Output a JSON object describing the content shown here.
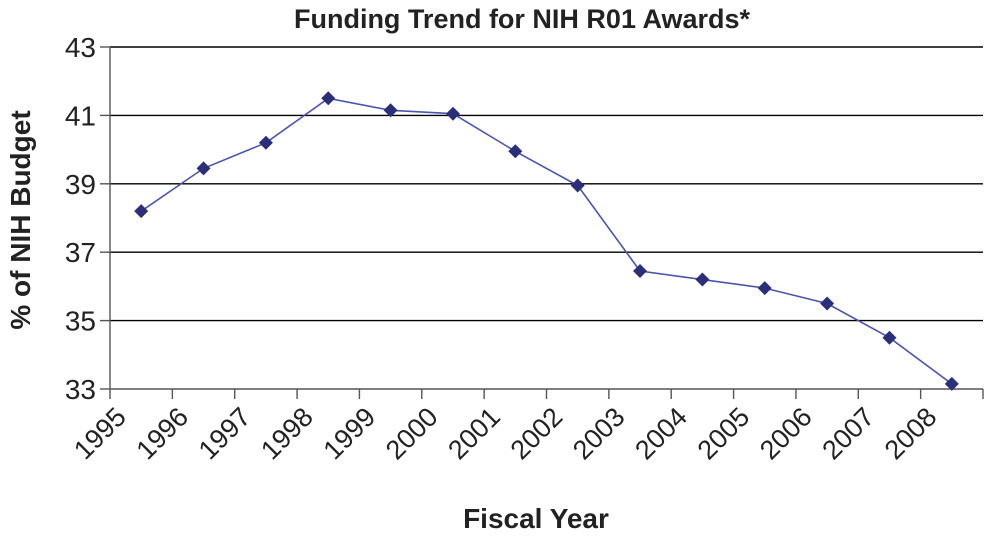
{
  "chart_data": {
    "type": "line",
    "title": "Funding Trend for NIH R01 Awards*",
    "xlabel": "Fiscal Year",
    "ylabel": "% of NIH Budget",
    "categories": [
      "1995",
      "1996",
      "1997",
      "1998",
      "1999",
      "2000",
      "2001",
      "2002",
      "2003",
      "2004",
      "2005",
      "2006",
      "2007",
      "2008"
    ],
    "ylim": [
      33,
      43
    ],
    "yticks": [
      33,
      35,
      37,
      39,
      41,
      43
    ],
    "grid": true,
    "series": [
      {
        "values": [
          38.2,
          39.45,
          40.2,
          41.5,
          41.15,
          41.05,
          39.95,
          38.95,
          36.45,
          36.2,
          35.95,
          35.5,
          34.5,
          33.15
        ]
      }
    ],
    "colors": {
      "line": "#4a55b0",
      "marker": "#2b2f7a"
    }
  }
}
